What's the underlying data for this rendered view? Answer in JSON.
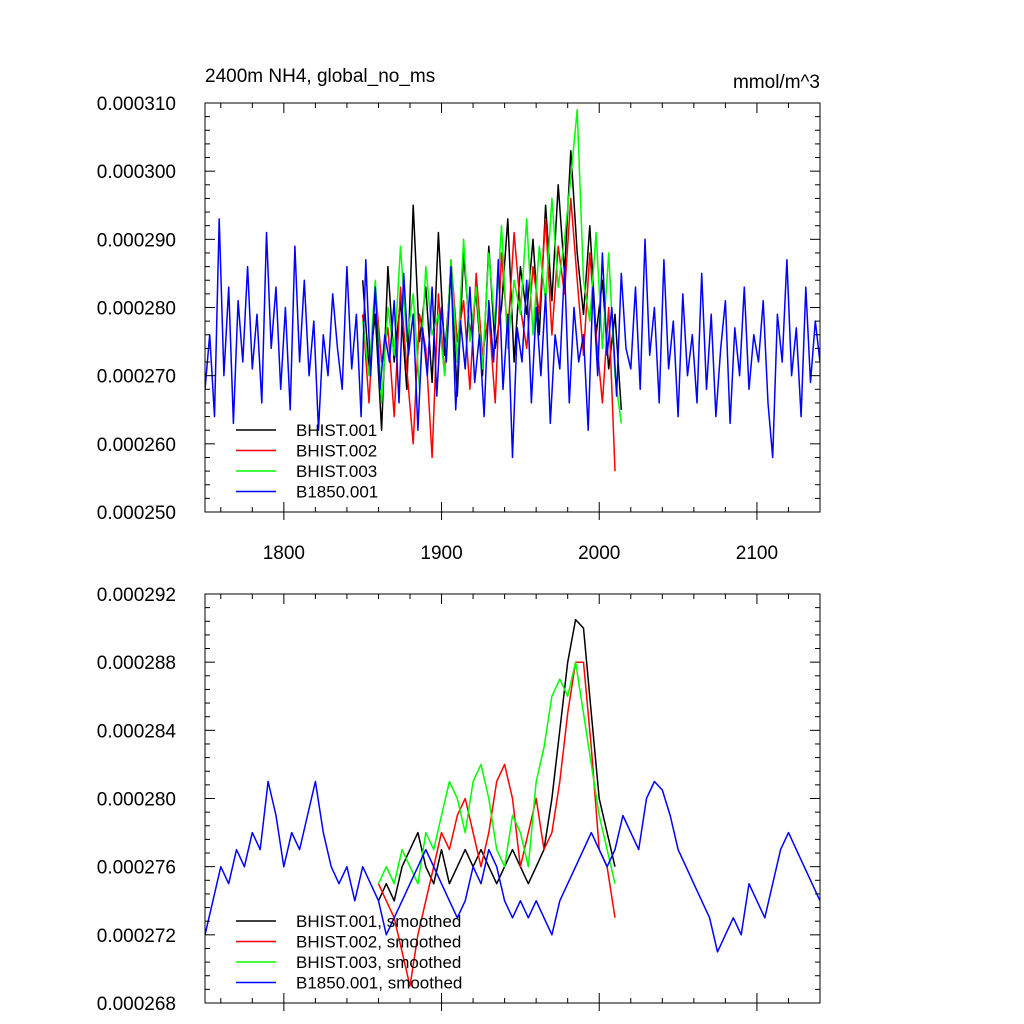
{
  "chart_data": [
    {
      "type": "line",
      "title_left": "2400m NH4, global_no_ms",
      "title_right": "mmol/m^3",
      "xlim": [
        1750,
        2140
      ],
      "ylim": [
        0.00025,
        0.00031
      ],
      "xticks": [
        1800,
        1900,
        2000,
        2100
      ],
      "yticks": [
        0.00025,
        0.00026,
        0.00027,
        0.00028,
        0.00029,
        0.0003,
        0.00031
      ],
      "ytick_labels": [
        "0.000250",
        "0.000260",
        "0.000270",
        "0.000280",
        "0.000290",
        "0.000300",
        "0.000310"
      ],
      "show_xtick_labels": true,
      "legend_position": "bottom-left",
      "series": [
        {
          "name": "BHIST.001",
          "color": "#000000",
          "x": [
            1850,
            1854,
            1858,
            1862,
            1866,
            1870,
            1874,
            1878,
            1882,
            1886,
            1890,
            1894,
            1898,
            1902,
            1906,
            1910,
            1914,
            1918,
            1922,
            1926,
            1930,
            1934,
            1938,
            1942,
            1946,
            1950,
            1954,
            1958,
            1962,
            1966,
            1970,
            1974,
            1978,
            1982,
            1986,
            1990,
            1994,
            1998,
            2002,
            2006,
            2010,
            2014
          ],
          "y": [
            0.000284,
            0.000271,
            0.000279,
            0.000262,
            0.000286,
            0.000272,
            0.000281,
            0.000268,
            0.000295,
            0.000275,
            0.000283,
            0.000269,
            0.000291,
            0.000273,
            0.000285,
            0.000267,
            0.000288,
            0.000276,
            0.000282,
            0.00027,
            0.000289,
            0.000274,
            0.00028,
            0.000293,
            0.000272,
            0.000286,
            0.000279,
            0.00029,
            0.000276,
            0.000295,
            0.000281,
            0.000298,
            0.000285,
            0.000303,
            0.000288,
            0.000279,
            0.000292,
            0.000276,
            0.000284,
            0.000271,
            0.000279,
            0.000265
          ]
        },
        {
          "name": "BHIST.002",
          "color": "#ff0000",
          "x": [
            1850,
            1854,
            1858,
            1862,
            1866,
            1870,
            1874,
            1878,
            1882,
            1886,
            1890,
            1894,
            1898,
            1902,
            1906,
            1910,
            1914,
            1918,
            1922,
            1926,
            1930,
            1934,
            1938,
            1942,
            1946,
            1950,
            1954,
            1958,
            1962,
            1966,
            1970,
            1974,
            1978,
            1982,
            1986,
            1990,
            1994,
            1998,
            2002,
            2006,
            2010
          ],
          "y": [
            0.000279,
            0.000266,
            0.000283,
            0.000272,
            0.000277,
            0.000264,
            0.000283,
            0.000271,
            0.00026,
            0.000279,
            0.000274,
            0.000258,
            0.000282,
            0.00027,
            0.000287,
            0.000275,
            0.000281,
            0.000268,
            0.000285,
            0.000273,
            0.000279,
            0.000266,
            0.000288,
            0.000276,
            0.000291,
            0.00028,
            0.000274,
            0.000286,
            0.000279,
            0.000293,
            0.000276,
            0.000289,
            0.000282,
            0.000296,
            0.000284,
            0.000273,
            0.000288,
            0.000276,
            0.000266,
            0.00028,
            0.000256
          ]
        },
        {
          "name": "BHIST.003",
          "color": "#00ff00",
          "x": [
            1850,
            1854,
            1858,
            1862,
            1866,
            1870,
            1874,
            1878,
            1882,
            1886,
            1890,
            1894,
            1898,
            1902,
            1906,
            1910,
            1914,
            1918,
            1922,
            1926,
            1930,
            1934,
            1938,
            1942,
            1946,
            1950,
            1954,
            1958,
            1962,
            1966,
            1970,
            1974,
            1978,
            1982,
            1986,
            1990,
            1994,
            1998,
            2002,
            2006,
            2010,
            2014
          ],
          "y": [
            0.000278,
            0.00027,
            0.000284,
            0.000266,
            0.00028,
            0.000273,
            0.000289,
            0.000275,
            0.000282,
            0.000268,
            0.000286,
            0.000276,
            0.000279,
            0.00027,
            0.000287,
            0.000272,
            0.00029,
            0.000275,
            0.000283,
            0.000271,
            0.000288,
            0.000277,
            0.000292,
            0.000274,
            0.000284,
            0.000279,
            0.000293,
            0.000276,
            0.000289,
            0.000281,
            0.000296,
            0.000283,
            0.00029,
            0.000299,
            0.000309,
            0.000284,
            0.000278,
            0.000291,
            0.000274,
            0.000288,
            0.00027,
            0.000263
          ]
        },
        {
          "name": "B1850.001",
          "color": "#0000ff",
          "x": [
            1750,
            1753,
            1756,
            1759,
            1762,
            1765,
            1768,
            1771,
            1774,
            1777,
            1780,
            1783,
            1786,
            1789,
            1792,
            1795,
            1798,
            1801,
            1804,
            1807,
            1810,
            1813,
            1816,
            1819,
            1822,
            1825,
            1828,
            1831,
            1834,
            1837,
            1840,
            1843,
            1846,
            1849,
            1852,
            1855,
            1858,
            1861,
            1864,
            1867,
            1870,
            1873,
            1876,
            1879,
            1882,
            1885,
            1888,
            1891,
            1894,
            1897,
            1900,
            1903,
            1906,
            1909,
            1912,
            1915,
            1918,
            1921,
            1924,
            1927,
            1930,
            1933,
            1936,
            1939,
            1942,
            1945,
            1948,
            1951,
            1954,
            1957,
            1960,
            1963,
            1966,
            1969,
            1972,
            1975,
            1978,
            1981,
            1984,
            1987,
            1990,
            1993,
            1996,
            1999,
            2002,
            2005,
            2008,
            2011,
            2014,
            2017,
            2020,
            2023,
            2026,
            2029,
            2032,
            2035,
            2038,
            2041,
            2044,
            2047,
            2050,
            2053,
            2056,
            2059,
            2062,
            2065,
            2068,
            2071,
            2074,
            2077,
            2080,
            2083,
            2086,
            2089,
            2092,
            2095,
            2098,
            2101,
            2104,
            2107,
            2110,
            2113,
            2116,
            2119,
            2122,
            2125,
            2128,
            2131,
            2134,
            2137,
            2140
          ],
          "y": [
            0.000268,
            0.000276,
            0.000264,
            0.000293,
            0.00027,
            0.000283,
            0.000263,
            0.000281,
            0.000272,
            0.000286,
            0.000271,
            0.000279,
            0.000266,
            0.000291,
            0.000274,
            0.000283,
            0.000268,
            0.00028,
            0.000265,
            0.000289,
            0.000272,
            0.000284,
            0.00027,
            0.000278,
            0.000262,
            0.000276,
            0.00027,
            0.000282,
            0.000274,
            0.000268,
            0.000286,
            0.000271,
            0.000279,
            0.000264,
            0.000287,
            0.00027,
            0.000283,
            0.000268,
            0.000276,
            0.000272,
            0.000281,
            0.000266,
            0.000285,
            0.000273,
            0.000279,
            0.000262,
            0.000277,
            0.00027,
            0.000283,
            0.000267,
            0.00028,
            0.000272,
            0.000286,
            0.000265,
            0.000278,
            0.000271,
            0.000283,
            0.000269,
            0.000276,
            0.000264,
            0.000281,
            0.000272,
            0.000287,
            0.000268,
            0.000279,
            0.000258,
            0.000277,
            0.000272,
            0.000284,
            0.000266,
            0.00028,
            0.00027,
            0.000282,
            0.000263,
            0.000276,
            0.000271,
            0.000286,
            0.000266,
            0.00028,
            0.000272,
            0.000276,
            0.000262,
            0.000283,
            0.00027,
            0.000288,
            0.000273,
            0.00028,
            0.000267,
            0.000285,
            0.000274,
            0.000271,
            0.000283,
            0.000268,
            0.00029,
            0.000273,
            0.00028,
            0.000266,
            0.000287,
            0.000271,
            0.000278,
            0.000264,
            0.000282,
            0.00027,
            0.000276,
            0.000266,
            0.000285,
            0.000268,
            0.000279,
            0.000264,
            0.000274,
            0.000281,
            0.000263,
            0.000277,
            0.00027,
            0.000283,
            0.000268,
            0.000276,
            0.000272,
            0.000281,
            0.000266,
            0.000258,
            0.000279,
            0.000272,
            0.000287,
            0.00027,
            0.000277,
            0.000264,
            0.000283,
            0.000269,
            0.000278,
            0.000272
          ]
        }
      ],
      "legend": [
        "BHIST.001",
        "BHIST.002",
        "BHIST.003",
        "B1850.001"
      ]
    },
    {
      "type": "line",
      "xlim": [
        1750,
        2140
      ],
      "ylim": [
        0.000268,
        0.000292
      ],
      "xticks": [
        1800,
        1900,
        2000,
        2100
      ],
      "yticks": [
        0.000268,
        0.000272,
        0.000276,
        0.00028,
        0.000284,
        0.000288,
        0.000292
      ],
      "ytick_labels": [
        "0.000268",
        "0.000272",
        "0.000276",
        "0.000280",
        "0.000284",
        "0.000288",
        "0.000292"
      ],
      "show_xtick_labels": false,
      "legend_position": "bottom-left",
      "series": [
        {
          "name": "BHIST.001, smoothed",
          "color": "#000000",
          "x": [
            1860,
            1865,
            1870,
            1875,
            1880,
            1885,
            1890,
            1895,
            1900,
            1905,
            1910,
            1915,
            1920,
            1925,
            1930,
            1935,
            1940,
            1945,
            1950,
            1955,
            1960,
            1965,
            1970,
            1975,
            1980,
            1985,
            1990,
            1995,
            2000,
            2005,
            2010
          ],
          "y": [
            0.000274,
            0.000275,
            0.000274,
            0.000276,
            0.000277,
            0.000278,
            0.000276,
            0.000275,
            0.000277,
            0.000275,
            0.000276,
            0.000277,
            0.000276,
            0.000277,
            0.000276,
            0.000275,
            0.000276,
            0.000277,
            0.000276,
            0.000275,
            0.000276,
            0.000277,
            0.00028,
            0.000284,
            0.000288,
            0.0002905,
            0.00029,
            0.000285,
            0.00028,
            0.000278,
            0.000276
          ]
        },
        {
          "name": "BHIST.002, smoothed",
          "color": "#ff0000",
          "x": [
            1860,
            1865,
            1870,
            1875,
            1880,
            1885,
            1890,
            1895,
            1900,
            1905,
            1910,
            1915,
            1920,
            1925,
            1930,
            1935,
            1940,
            1945,
            1950,
            1955,
            1960,
            1965,
            1970,
            1975,
            1980,
            1985,
            1990,
            1995,
            2000,
            2005,
            2010
          ],
          "y": [
            0.000275,
            0.000274,
            0.000273,
            0.000271,
            0.000269,
            0.000272,
            0.000274,
            0.000276,
            0.000278,
            0.000277,
            0.000279,
            0.00028,
            0.000278,
            0.000276,
            0.000278,
            0.000281,
            0.000282,
            0.00028,
            0.000276,
            0.000278,
            0.00028,
            0.000277,
            0.000278,
            0.000281,
            0.000285,
            0.000288,
            0.000288,
            0.000283,
            0.000277,
            0.000276,
            0.000273
          ]
        },
        {
          "name": "BHIST.003, smoothed",
          "color": "#00ff00",
          "x": [
            1860,
            1865,
            1870,
            1875,
            1880,
            1885,
            1890,
            1895,
            1900,
            1905,
            1910,
            1915,
            1920,
            1925,
            1930,
            1935,
            1940,
            1945,
            1950,
            1955,
            1960,
            1965,
            1970,
            1975,
            1980,
            1985,
            1990,
            1995,
            2000,
            2005,
            2010
          ],
          "y": [
            0.000275,
            0.000276,
            0.000275,
            0.000277,
            0.000276,
            0.000275,
            0.000278,
            0.000277,
            0.000279,
            0.000281,
            0.00028,
            0.000278,
            0.000281,
            0.000282,
            0.00028,
            0.000277,
            0.000276,
            0.000279,
            0.000278,
            0.000276,
            0.000281,
            0.000283,
            0.000286,
            0.000287,
            0.000286,
            0.000288,
            0.000285,
            0.000282,
            0.000279,
            0.000277,
            0.000275
          ]
        },
        {
          "name": "B1850.001, smoothed",
          "color": "#0000ff",
          "x": [
            1750,
            1755,
            1760,
            1765,
            1770,
            1775,
            1780,
            1785,
            1790,
            1795,
            1800,
            1805,
            1810,
            1815,
            1820,
            1825,
            1830,
            1835,
            1840,
            1845,
            1850,
            1855,
            1860,
            1865,
            1870,
            1875,
            1880,
            1885,
            1890,
            1895,
            1900,
            1905,
            1910,
            1915,
            1920,
            1925,
            1930,
            1935,
            1940,
            1945,
            1950,
            1955,
            1960,
            1965,
            1970,
            1975,
            1980,
            1985,
            1990,
            1995,
            2000,
            2005,
            2010,
            2015,
            2020,
            2025,
            2030,
            2035,
            2040,
            2045,
            2050,
            2055,
            2060,
            2065,
            2070,
            2075,
            2080,
            2085,
            2090,
            2095,
            2100,
            2105,
            2110,
            2115,
            2120,
            2125,
            2130,
            2135,
            2140
          ],
          "y": [
            0.000272,
            0.000274,
            0.000276,
            0.000275,
            0.000277,
            0.000276,
            0.000278,
            0.000277,
            0.000281,
            0.000279,
            0.000276,
            0.000278,
            0.000277,
            0.000279,
            0.000281,
            0.000278,
            0.000276,
            0.000275,
            0.000276,
            0.000274,
            0.000276,
            0.000275,
            0.000274,
            0.000272,
            0.000273,
            0.000274,
            0.000275,
            0.000276,
            0.000277,
            0.000276,
            0.000275,
            0.000274,
            0.000273,
            0.000274,
            0.000276,
            0.000275,
            0.000277,
            0.000276,
            0.000274,
            0.000273,
            0.000274,
            0.000273,
            0.000274,
            0.000273,
            0.000272,
            0.000274,
            0.000275,
            0.000276,
            0.000277,
            0.000278,
            0.000277,
            0.000276,
            0.000277,
            0.000279,
            0.000278,
            0.000277,
            0.00028,
            0.000281,
            0.0002805,
            0.000279,
            0.000277,
            0.000276,
            0.000275,
            0.000274,
            0.000273,
            0.000271,
            0.000272,
            0.000273,
            0.000272,
            0.000275,
            0.000274,
            0.000273,
            0.000275,
            0.000277,
            0.000278,
            0.000277,
            0.000276,
            0.000275,
            0.000274
          ]
        }
      ],
      "legend": [
        "BHIST.001, smoothed",
        "BHIST.002, smoothed",
        "BHIST.003, smoothed",
        "B1850.001, smoothed"
      ]
    }
  ]
}
